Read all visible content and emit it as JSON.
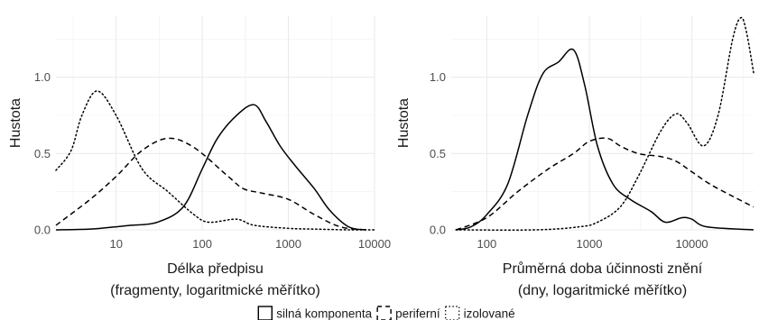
{
  "chart_data": [
    {
      "type": "line",
      "xscale": "log10",
      "xlabel_lines": [
        "Délka předpisu",
        "(fragmenty, logaritmické měřítko)"
      ],
      "ylabel": "Hustota",
      "xlim": [
        2,
        10000
      ],
      "ylim": [
        0,
        1.4
      ],
      "xticks": [
        10,
        100,
        1000,
        10000
      ],
      "xtick_labels": [
        "10",
        "100",
        "1000",
        "10000"
      ],
      "yticks": [
        0.0,
        0.5,
        1.0
      ],
      "ytick_labels": [
        "0.0",
        "0.5",
        "1.0"
      ],
      "series": [
        {
          "name": "silná komponenta",
          "style": "solid",
          "x": [
            2,
            5,
            10,
            15,
            30,
            60,
            100,
            150,
            250,
            400,
            550,
            800,
            1200,
            2000,
            3000,
            5000,
            8000
          ],
          "y": [
            0,
            0.005,
            0.02,
            0.03,
            0.05,
            0.15,
            0.4,
            0.6,
            0.75,
            0.82,
            0.71,
            0.55,
            0.42,
            0.27,
            0.13,
            0.02,
            0.0
          ]
        },
        {
          "name": "periferní",
          "style": "dashed",
          "x": [
            2,
            5,
            10,
            20,
            40,
            80,
            200,
            300,
            500,
            1000,
            2000,
            4000,
            8000
          ],
          "y": [
            0.03,
            0.2,
            0.35,
            0.52,
            0.6,
            0.54,
            0.35,
            0.27,
            0.24,
            0.2,
            0.1,
            0.02,
            0.0
          ]
        },
        {
          "name": "izolované",
          "style": "dotted",
          "x": [
            2,
            3,
            4,
            6,
            10,
            20,
            40,
            80,
            120,
            250,
            400,
            1000,
            2000,
            5000,
            10000
          ],
          "y": [
            0.39,
            0.52,
            0.75,
            0.91,
            0.75,
            0.4,
            0.25,
            0.1,
            0.05,
            0.07,
            0.03,
            0.01,
            0.005,
            0.0,
            0.0
          ]
        }
      ]
    },
    {
      "type": "line",
      "xscale": "log10",
      "xlabel_lines": [
        "Průměrná doba účinnosti znění",
        "(dny, logaritmické měřítko)"
      ],
      "ylabel": "Hustota",
      "xlim": [
        45,
        40000
      ],
      "ylim": [
        0,
        1.4
      ],
      "xticks": [
        100,
        1000,
        10000
      ],
      "xtick_labels": [
        "100",
        "1000",
        "10000"
      ],
      "yticks": [
        0.0,
        0.5,
        1.0
      ],
      "ytick_labels": [
        "0.0",
        "0.5",
        "1.0"
      ],
      "series": [
        {
          "name": "silná komponenta",
          "style": "solid",
          "x": [
            50,
            70,
            100,
            160,
            250,
            350,
            500,
            700,
            900,
            1200,
            1700,
            2500,
            4000,
            5500,
            8000,
            10000,
            14000,
            40000
          ],
          "y": [
            0,
            0.02,
            0.1,
            0.3,
            0.75,
            1.02,
            1.1,
            1.18,
            0.95,
            0.55,
            0.3,
            0.2,
            0.12,
            0.05,
            0.08,
            0.07,
            0.02,
            0.0
          ]
        },
        {
          "name": "periferní",
          "style": "dashed",
          "x": [
            50,
            100,
            200,
            400,
            700,
            1000,
            1500,
            2000,
            3000,
            5000,
            7000,
            10000,
            15000,
            25000,
            40000
          ],
          "y": [
            0.0,
            0.08,
            0.25,
            0.4,
            0.5,
            0.58,
            0.6,
            0.55,
            0.5,
            0.48,
            0.45,
            0.38,
            0.3,
            0.22,
            0.15
          ]
        },
        {
          "name": "izolované",
          "style": "dotted",
          "x": [
            50,
            300,
            800,
            1200,
            2000,
            3000,
            5000,
            7000,
            9000,
            13000,
            18000,
            25000,
            30000,
            34000,
            40000
          ],
          "y": [
            0.0,
            0.0,
            0.02,
            0.05,
            0.15,
            0.35,
            0.65,
            0.76,
            0.7,
            0.55,
            0.75,
            1.25,
            1.39,
            1.3,
            1.03
          ]
        }
      ]
    }
  ],
  "legend": {
    "items": [
      {
        "label": "silná komponenta",
        "style": "solid"
      },
      {
        "label": "periferní",
        "style": "dashed"
      },
      {
        "label": "izolované",
        "style": "dotted"
      }
    ]
  }
}
